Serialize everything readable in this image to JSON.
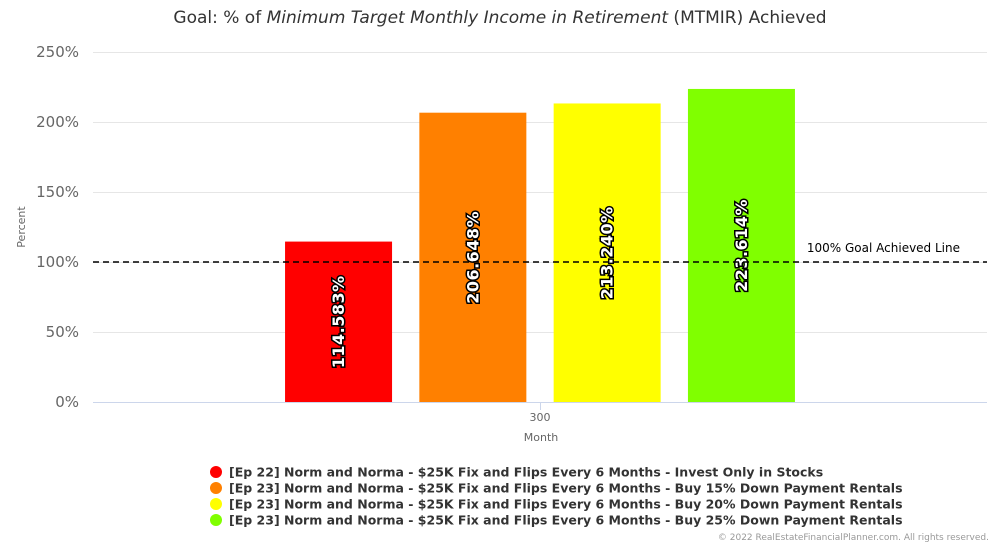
{
  "chart_data": {
    "type": "bar",
    "title_prefix": "Goal: % of ",
    "title_italic": "Minimum Target Monthly Income in Retirement",
    "title_suffix": " (MTMIR) Achieved",
    "xlabel": "Month",
    "ylabel": "Percent",
    "categories": [
      "300"
    ],
    "ylim": [
      0,
      250
    ],
    "yticks": [
      0,
      50,
      100,
      150,
      200,
      250
    ],
    "ytick_labels": [
      "0%",
      "50%",
      "100%",
      "150%",
      "200%",
      "250%"
    ],
    "grid": true,
    "legend_position": "bottom",
    "series": [
      {
        "name": "[Ep 22] Norm and Norma - $25K Fix and Flips Every 6 Months - Invest Only in Stocks",
        "values": [
          114.583
        ],
        "label": "114.583%",
        "color": "#ff0000"
      },
      {
        "name": "[Ep 23] Norm and Norma - $25K Fix and Flips Every 6 Months - Buy 15% Down Payment Rentals",
        "values": [
          206.648
        ],
        "label": "206.648%",
        "color": "#ff8000"
      },
      {
        "name": "[Ep 23] Norm and Norma - $25K Fix and Flips Every 6 Months - Buy 20% Down Payment Rentals",
        "values": [
          213.24
        ],
        "label": "213.240%",
        "color": "#ffff00"
      },
      {
        "name": "[Ep 23] Norm and Norma - $25K Fix and Flips Every 6 Months - Buy 25% Down Payment Rentals",
        "values": [
          223.614
        ],
        "label": "223.614%",
        "color": "#80ff00"
      }
    ],
    "reference_line": {
      "value": 100,
      "label": "100% Goal Achieved Line",
      "style": "dashed",
      "color": "#000000"
    },
    "credit": "© 2022 RealEstateFinancialPlanner.com. All rights reserved."
  }
}
